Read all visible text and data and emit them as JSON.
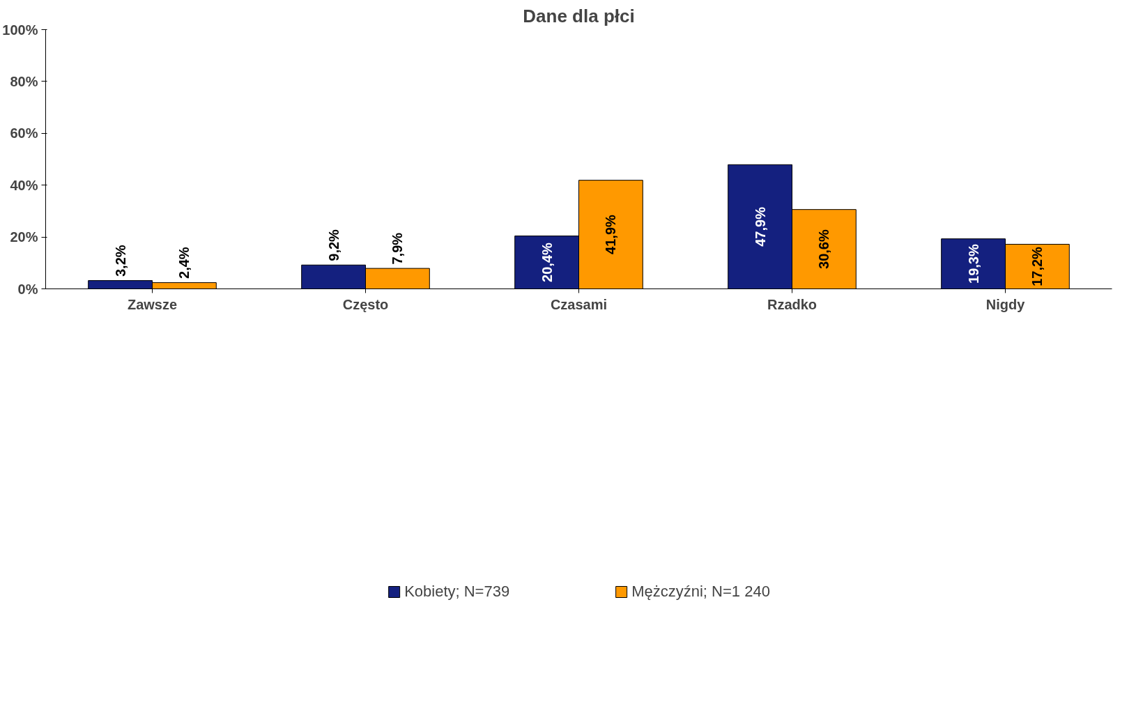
{
  "chart_data": {
    "type": "bar",
    "title": "Dane dla płci",
    "categories": [
      "Zawsze",
      "Często",
      "Czasami",
      "Rzadko",
      "Nigdy"
    ],
    "series": [
      {
        "name": "Kobiety; N=739",
        "color": "#14207f",
        "values": [
          3.2,
          9.2,
          20.4,
          47.9,
          19.3
        ],
        "value_labels": [
          "3,2%",
          "9,2%",
          "20,4%",
          "47,9%",
          "19,3%"
        ]
      },
      {
        "name": "Mężczyźni; N=1 240",
        "color": "#ff9900",
        "values": [
          2.4,
          7.9,
          41.9,
          30.6,
          17.2
        ],
        "value_labels": [
          "2,4%",
          "7,9%",
          "41,9%",
          "30,6%",
          "17,2%"
        ]
      }
    ],
    "ylim": [
      0,
      100
    ],
    "yticks": [
      {
        "value": 0,
        "label": "0%"
      },
      {
        "value": 20,
        "label": "20%"
      },
      {
        "value": 40,
        "label": "40%"
      },
      {
        "value": 60,
        "label": "60%"
      },
      {
        "value": 80,
        "label": "80%"
      },
      {
        "value": 100,
        "label": "100%"
      }
    ],
    "grid": false,
    "legend": "bottom"
  }
}
